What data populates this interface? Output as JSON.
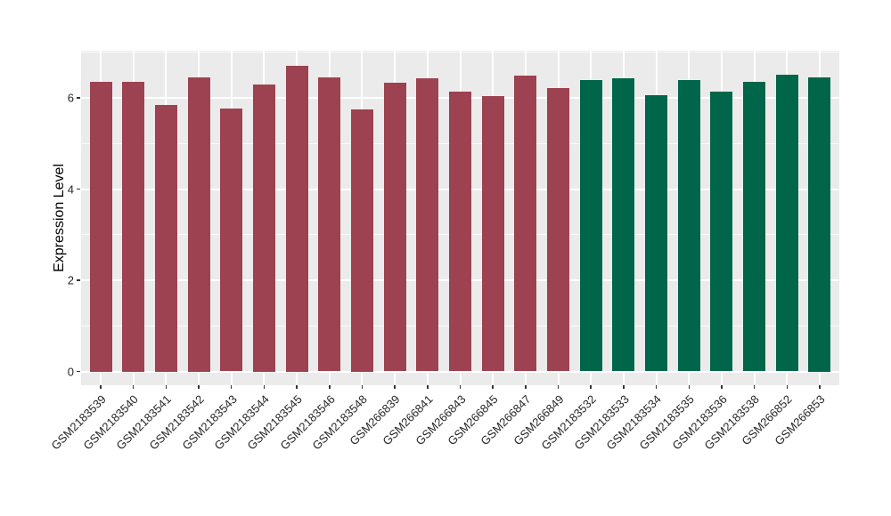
{
  "figure": {
    "background": "#FFFFFF",
    "panel_background": "#EBEBEB",
    "grid_color": "#FFFFFF",
    "axis_text_color": "#262626",
    "tick_mark_color": "#333333",
    "ylabel": "Expression Level"
  },
  "chart_data": {
    "type": "bar",
    "title": "",
    "xlabel": "",
    "ylabel": "Expression Level",
    "ylim": [
      -0.3,
      7.03
    ],
    "yticks": [
      0,
      2,
      4,
      6
    ],
    "yticks_minor": [
      1,
      3,
      5,
      7
    ],
    "grid": "on",
    "legend": "none",
    "categories": [
      "GSM2183539",
      "GSM2183540",
      "GSM2183541",
      "GSM2183542",
      "GSM2183543",
      "GSM2183544",
      "GSM2183545",
      "GSM2183546",
      "GSM2183548",
      "GSM266839",
      "GSM266841",
      "GSM266843",
      "GSM266845",
      "GSM266847",
      "GSM266849",
      "GSM2183532",
      "GSM2183533",
      "GSM2183534",
      "GSM2183535",
      "GSM2183536",
      "GSM2183538",
      "GSM266852",
      "GSM266853"
    ],
    "values": [
      6.35,
      6.35,
      5.85,
      6.45,
      5.76,
      6.3,
      6.7,
      6.44,
      5.75,
      6.34,
      6.42,
      6.14,
      6.03,
      6.49,
      6.21,
      6.39,
      6.43,
      6.06,
      6.39,
      6.13,
      6.36,
      6.51,
      6.45
    ],
    "groups": [
      "A",
      "A",
      "A",
      "A",
      "A",
      "A",
      "A",
      "A",
      "A",
      "A",
      "A",
      "A",
      "A",
      "A",
      "A",
      "B",
      "B",
      "B",
      "B",
      "B",
      "B",
      "B",
      "B"
    ],
    "group_colors": {
      "A": "#9C4250",
      "B": "#006649"
    }
  }
}
